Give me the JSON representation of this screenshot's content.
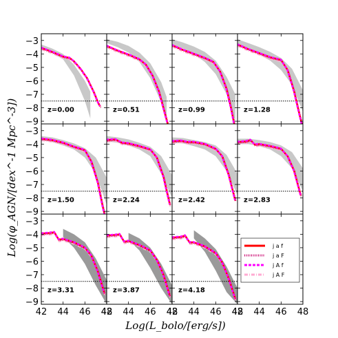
{
  "chart_data": {
    "type": "line",
    "layout": "grid-3x4",
    "xlabel": "Log(L_bolo/[erg/s])",
    "ylabel": "Log(φ_AGN/[dex^-1 Mpc^-3])",
    "xlim": [
      42,
      48
    ],
    "ylim": [
      -9.2,
      -2.5
    ],
    "xticks": [
      "42",
      "44",
      "46",
      "48"
    ],
    "yticks": [
      "-3",
      "-4",
      "-5",
      "-6",
      "-7",
      "-8",
      "-9"
    ],
    "reference_line_y": -7.5,
    "legend": {
      "location": "lower panel 12",
      "entries": [
        {
          "label": "j a f",
          "color": "#ff0000",
          "style": "solid"
        },
        {
          "label": "j a F",
          "color": "#c8006e",
          "style": "dotted"
        },
        {
          "label": "j A f",
          "color": "#ff00ff",
          "style": "dashed"
        },
        {
          "label": "j A F",
          "color": "#ffaad2",
          "style": "dashdot"
        }
      ]
    },
    "panels": [
      {
        "z": "z=0.00",
        "model": [
          [
            42,
            -3.55
          ],
          [
            43,
            -3.85
          ],
          [
            44,
            -4.2
          ],
          [
            44.6,
            -4.3
          ],
          [
            45,
            -4.55
          ],
          [
            45.6,
            -5.1
          ],
          [
            46.2,
            -5.8
          ],
          [
            46.8,
            -6.8
          ],
          [
            47.2,
            -7.6
          ],
          [
            47.4,
            -7.9
          ]
        ],
        "band_upper": [
          [
            42,
            -3.3
          ],
          [
            43,
            -3.6
          ],
          [
            44,
            -4.0
          ],
          [
            45,
            -4.8
          ],
          [
            46,
            -6.0
          ],
          [
            46.5,
            -6.8
          ]
        ],
        "band_lower": [
          [
            42,
            -3.5
          ],
          [
            43,
            -3.95
          ],
          [
            44,
            -4.4
          ],
          [
            45,
            -5.6
          ],
          [
            46,
            -7.5
          ],
          [
            46.5,
            -8.8
          ]
        ]
      },
      {
        "z": "z=0.51",
        "model": [
          [
            42,
            -3.4
          ],
          [
            43,
            -3.75
          ],
          [
            44,
            -4.05
          ],
          [
            45,
            -4.4
          ],
          [
            45.6,
            -4.8
          ],
          [
            46.2,
            -5.6
          ],
          [
            46.8,
            -6.8
          ],
          [
            47.3,
            -8.3
          ],
          [
            47.6,
            -9.2
          ]
        ],
        "band_upper": [
          [
            42,
            -2.9
          ],
          [
            43,
            -3.1
          ],
          [
            44,
            -3.4
          ],
          [
            45,
            -3.9
          ],
          [
            46,
            -4.7
          ],
          [
            47,
            -6.1
          ],
          [
            47.5,
            -7.2
          ]
        ],
        "band_lower": [
          [
            42,
            -3.2
          ],
          [
            43,
            -3.5
          ],
          [
            44,
            -3.9
          ],
          [
            45,
            -4.6
          ],
          [
            46,
            -5.8
          ],
          [
            47,
            -7.6
          ],
          [
            47.5,
            -9.0
          ]
        ]
      },
      {
        "z": "z=0.99",
        "model": [
          [
            42,
            -3.35
          ],
          [
            43,
            -3.7
          ],
          [
            44,
            -4.0
          ],
          [
            45,
            -4.3
          ],
          [
            45.8,
            -4.6
          ],
          [
            46.4,
            -5.3
          ],
          [
            47,
            -6.6
          ],
          [
            47.4,
            -8.0
          ],
          [
            47.7,
            -9.2
          ]
        ],
        "band_upper": [
          [
            42,
            -2.9
          ],
          [
            43,
            -3.15
          ],
          [
            44,
            -3.45
          ],
          [
            45,
            -3.85
          ],
          [
            46,
            -4.5
          ],
          [
            47,
            -5.7
          ],
          [
            47.8,
            -7.0
          ]
        ],
        "band_lower": [
          [
            42,
            -3.3
          ],
          [
            43,
            -3.6
          ],
          [
            44,
            -4.0
          ],
          [
            45,
            -4.6
          ],
          [
            46,
            -5.5
          ],
          [
            47,
            -7.0
          ],
          [
            47.8,
            -9.0
          ]
        ]
      },
      {
        "z": "z=1.28",
        "model": [
          [
            42,
            -3.3
          ],
          [
            43,
            -3.65
          ],
          [
            44,
            -3.95
          ],
          [
            45,
            -4.25
          ],
          [
            46,
            -4.45
          ],
          [
            46.6,
            -5.2
          ],
          [
            47.2,
            -6.8
          ],
          [
            47.6,
            -8.2
          ],
          [
            47.9,
            -9.2
          ]
        ],
        "band_upper": [
          [
            42,
            -2.9
          ],
          [
            43,
            -3.2
          ],
          [
            44,
            -3.5
          ],
          [
            45,
            -3.85
          ],
          [
            46,
            -4.3
          ],
          [
            47,
            -5.1
          ],
          [
            48,
            -6.7
          ]
        ],
        "band_lower": [
          [
            42,
            -3.3
          ],
          [
            43,
            -3.65
          ],
          [
            44,
            -4.05
          ],
          [
            45,
            -4.5
          ],
          [
            46,
            -5.2
          ],
          [
            47,
            -6.3
          ],
          [
            48,
            -8.3
          ]
        ]
      },
      {
        "z": "z=1.50",
        "model": [
          [
            42,
            -3.6
          ],
          [
            43,
            -3.7
          ],
          [
            44,
            -3.9
          ],
          [
            45,
            -4.2
          ],
          [
            46,
            -4.45
          ],
          [
            46.6,
            -5.3
          ],
          [
            47.2,
            -6.9
          ],
          [
            47.6,
            -8.5
          ],
          [
            47.8,
            -9.2
          ]
        ],
        "band_upper": [
          [
            42,
            -3.4
          ],
          [
            43,
            -3.5
          ],
          [
            44,
            -3.7
          ],
          [
            45,
            -3.95
          ],
          [
            46,
            -4.3
          ],
          [
            47,
            -5.0
          ],
          [
            48,
            -6.5
          ]
        ],
        "band_lower": [
          [
            42,
            -3.7
          ],
          [
            43,
            -3.85
          ],
          [
            44,
            -4.1
          ],
          [
            45,
            -4.4
          ],
          [
            46,
            -5.0
          ],
          [
            47,
            -6.2
          ],
          [
            48,
            -8.5
          ]
        ]
      },
      {
        "z": "z=2.24",
        "model": [
          [
            42,
            -3.7
          ],
          [
            42.8,
            -3.65
          ],
          [
            43.4,
            -3.9
          ],
          [
            44,
            -3.95
          ],
          [
            45,
            -4.15
          ],
          [
            46,
            -4.4
          ],
          [
            46.6,
            -5.0
          ],
          [
            47.2,
            -6.4
          ],
          [
            47.8,
            -8.5
          ]
        ],
        "band_upper": [
          [
            42,
            -3.4
          ],
          [
            43,
            -3.5
          ],
          [
            44,
            -3.65
          ],
          [
            45,
            -3.9
          ],
          [
            46,
            -4.2
          ],
          [
            47,
            -4.9
          ],
          [
            48,
            -6.3
          ]
        ],
        "band_lower": [
          [
            42,
            -3.8
          ],
          [
            43,
            -3.9
          ],
          [
            44,
            -4.1
          ],
          [
            45,
            -4.4
          ],
          [
            46,
            -4.9
          ],
          [
            47,
            -6.2
          ],
          [
            48,
            -8.0
          ]
        ]
      },
      {
        "z": "z=2.42",
        "model": [
          [
            42,
            -3.8
          ],
          [
            42.8,
            -3.75
          ],
          [
            43.4,
            -3.85
          ],
          [
            44,
            -3.85
          ],
          [
            45,
            -4.0
          ],
          [
            46,
            -4.35
          ],
          [
            46.6,
            -4.9
          ],
          [
            47.2,
            -6.3
          ],
          [
            47.8,
            -8.2
          ]
        ],
        "band_upper": [
          [
            42,
            -3.5
          ],
          [
            43,
            -3.55
          ],
          [
            44,
            -3.7
          ],
          [
            45,
            -3.85
          ],
          [
            46,
            -4.1
          ],
          [
            47,
            -4.8
          ],
          [
            48,
            -6.2
          ]
        ],
        "band_lower": [
          [
            42,
            -3.9
          ],
          [
            43,
            -3.95
          ],
          [
            44,
            -4.15
          ],
          [
            45,
            -4.4
          ],
          [
            46,
            -4.9
          ],
          [
            47,
            -6.0
          ],
          [
            48,
            -7.8
          ]
        ]
      },
      {
        "z": "z=2.83",
        "model": [
          [
            42,
            -3.85
          ],
          [
            42.8,
            -3.8
          ],
          [
            43.2,
            -3.7
          ],
          [
            43.6,
            -4.05
          ],
          [
            44,
            -4.0
          ],
          [
            45,
            -4.15
          ],
          [
            46,
            -4.35
          ],
          [
            46.6,
            -4.9
          ],
          [
            47.2,
            -6.0
          ],
          [
            47.8,
            -7.8
          ]
        ],
        "band_upper": [
          [
            42,
            -3.6
          ],
          [
            43,
            -3.6
          ],
          [
            44,
            -3.7
          ],
          [
            45,
            -3.85
          ],
          [
            46,
            -4.1
          ],
          [
            47,
            -4.6
          ],
          [
            48,
            -5.8
          ]
        ],
        "band_lower": [
          [
            42,
            -4.0
          ],
          [
            43,
            -4.0
          ],
          [
            44,
            -4.15
          ],
          [
            45,
            -4.4
          ],
          [
            46,
            -4.9
          ],
          [
            47,
            -5.8
          ],
          [
            48,
            -7.5
          ]
        ]
      },
      {
        "z": "z=3.31",
        "model": [
          [
            42,
            -3.95
          ],
          [
            42.8,
            -3.9
          ],
          [
            43.2,
            -3.85
          ],
          [
            43.6,
            -4.4
          ],
          [
            44,
            -4.35
          ],
          [
            45,
            -4.6
          ],
          [
            46,
            -5.0
          ],
          [
            46.6,
            -5.6
          ],
          [
            47.2,
            -6.8
          ],
          [
            47.8,
            -8.4
          ]
        ],
        "band_upper": [
          [
            44,
            -3.6
          ],
          [
            45,
            -4.0
          ],
          [
            46,
            -4.6
          ],
          [
            47,
            -5.8
          ],
          [
            48,
            -7.4
          ]
        ],
        "band_lower": [
          [
            44,
            -4.2
          ],
          [
            45,
            -5.0
          ],
          [
            46,
            -6.2
          ],
          [
            47,
            -7.8
          ],
          [
            48,
            -9.2
          ]
        ]
      },
      {
        "z": "z=3.87",
        "model": [
          [
            42,
            -4.1
          ],
          [
            42.8,
            -4.05
          ],
          [
            43.2,
            -4.0
          ],
          [
            43.6,
            -4.55
          ],
          [
            44,
            -4.5
          ],
          [
            45,
            -4.8
          ],
          [
            46,
            -5.2
          ],
          [
            46.6,
            -5.9
          ],
          [
            47.2,
            -7.0
          ],
          [
            47.8,
            -8.6
          ]
        ],
        "band_upper": [
          [
            44,
            -3.9
          ],
          [
            45,
            -4.3
          ],
          [
            46,
            -5.0
          ],
          [
            47,
            -6.2
          ],
          [
            48,
            -7.8
          ]
        ],
        "band_lower": [
          [
            44,
            -4.4
          ],
          [
            45,
            -5.2
          ],
          [
            46,
            -6.5
          ],
          [
            47,
            -8.0
          ],
          [
            48,
            -9.2
          ]
        ]
      },
      {
        "z": "z=4.18",
        "model": [
          [
            42,
            -4.25
          ],
          [
            42.8,
            -4.2
          ],
          [
            43.2,
            -4.1
          ],
          [
            43.6,
            -4.6
          ],
          [
            44,
            -4.6
          ],
          [
            45,
            -4.9
          ],
          [
            46,
            -5.4
          ],
          [
            46.6,
            -6.1
          ],
          [
            47.2,
            -7.3
          ],
          [
            47.8,
            -8.8
          ]
        ],
        "band_upper": [
          [
            44,
            -3.7
          ],
          [
            45,
            -4.3
          ],
          [
            46,
            -5.1
          ],
          [
            47,
            -6.4
          ],
          [
            48,
            -8.0
          ]
        ],
        "band_lower": [
          [
            44,
            -4.3
          ],
          [
            45,
            -5.3
          ],
          [
            46,
            -6.7
          ],
          [
            47,
            -8.3
          ],
          [
            48,
            -9.2
          ]
        ]
      }
    ]
  }
}
